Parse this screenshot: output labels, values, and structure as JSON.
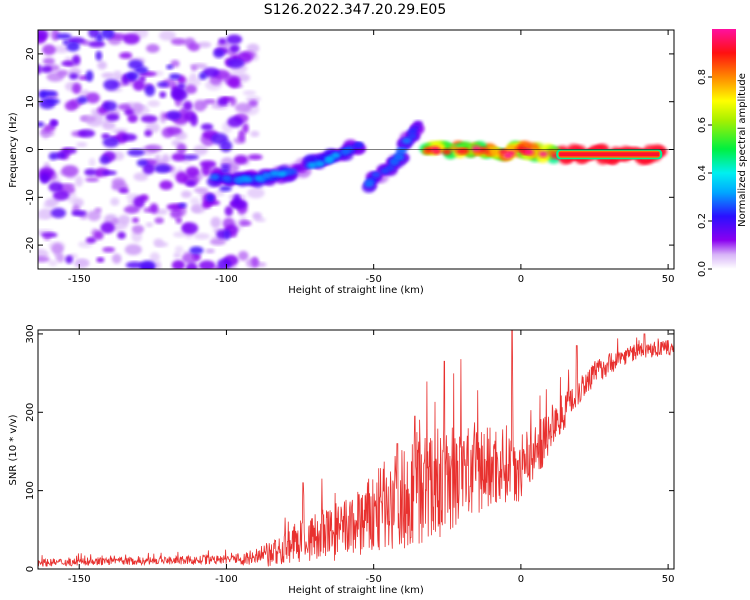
{
  "figure": {
    "title": "S126.2022.347.20.29.E05"
  },
  "colors": {
    "snr_line": "#e8312f",
    "axis": "#000000",
    "zero_line": "#000000"
  },
  "chart_data": [
    {
      "type": "heatmap",
      "xlabel": "Height of straight line (km)",
      "ylabel": "Frequency (Hz)",
      "xlim": [
        -164,
        52
      ],
      "ylim": [
        -25,
        25
      ],
      "xticks": [
        -150,
        -100,
        -50,
        0,
        50
      ],
      "yticks": [
        -20,
        -10,
        0,
        10,
        20
      ],
      "grid": false,
      "colorbar": {
        "label": "Normalized spectral amplitude",
        "range": [
          0,
          1
        ],
        "ticks": [
          "0.0",
          "0.2",
          "0.4",
          "0.6",
          "0.8"
        ],
        "tick_values": [
          0.0,
          0.2,
          0.4,
          0.6,
          0.8
        ],
        "colormap": "rainbow (white-violet-blue-cyan-green-yellow-red-magenta)"
      },
      "features": [
        {
          "name": "noise region",
          "x_range": [
            -164,
            -88
          ],
          "y_range": [
            -25,
            25
          ],
          "amplitude": [
            0.0,
            0.2
          ]
        },
        {
          "name": "dispersive track segment A",
          "points": [
            [
              -104,
              -6
            ],
            [
              -90,
              -6
            ],
            [
              -80,
              -5
            ],
            [
              -70,
              -3
            ],
            [
              -62,
              -1
            ],
            [
              -54,
              1
            ]
          ],
          "amplitude": [
            0.1,
            0.35
          ]
        },
        {
          "name": "dispersive track segment B",
          "points": [
            [
              -52,
              -7
            ],
            [
              -46,
              -4
            ],
            [
              -42,
              -2
            ],
            [
              -38,
              2
            ],
            [
              -34,
              6
            ]
          ],
          "amplitude": [
            0.1,
            0.3
          ]
        },
        {
          "name": "steady track",
          "points": [
            [
              -32,
              0
            ],
            [
              -20,
              0
            ],
            [
              -5,
              -1
            ],
            [
              0,
              0
            ],
            [
              10,
              -1
            ],
            [
              48,
              -1
            ]
          ],
          "amplitude": [
            0.3,
            1.0
          ]
        }
      ]
    },
    {
      "type": "line",
      "xlabel": "Height of straight line (km)",
      "ylabel": "SNR (10 * v/v)",
      "xlim": [
        -164,
        52
      ],
      "ylim": [
        0,
        305
      ],
      "xticks": [
        -150,
        -100,
        -50,
        0,
        50
      ],
      "yticks": [
        0,
        100,
        200,
        300
      ],
      "grid": false,
      "series": [
        {
          "x": [
            -164,
            -150,
            -140,
            -130,
            -120,
            -110,
            -100,
            -95,
            -90,
            -85,
            -80,
            -75,
            -70,
            -65,
            -60,
            -55,
            -50,
            -45,
            -40,
            -35,
            -30,
            -25,
            -20,
            -15,
            -10,
            -5,
            0,
            5,
            10,
            15,
            20,
            25,
            30,
            35,
            40,
            45,
            50,
            52
          ],
          "y": [
            8,
            9,
            10,
            10,
            11,
            11,
            12,
            13,
            14,
            18,
            28,
            35,
            40,
            44,
            50,
            58,
            68,
            85,
            90,
            100,
            105,
            115,
            120,
            125,
            130,
            135,
            130,
            150,
            175,
            205,
            230,
            250,
            262,
            272,
            278,
            280,
            282,
            283
          ],
          "spread": [
            5,
            5,
            5,
            5,
            5,
            6,
            6,
            8,
            12,
            18,
            22,
            28,
            32,
            36,
            40,
            45,
            55,
            60,
            65,
            70,
            72,
            70,
            68,
            62,
            55,
            50,
            45,
            35,
            30,
            25,
            20,
            16,
            14,
            12,
            10,
            10,
            10,
            10
          ],
          "peaks": [
            [
              -74,
              110
            ],
            [
              -55,
              95
            ],
            [
              -42,
              160
            ],
            [
              -36,
              195
            ],
            [
              -26,
              265
            ],
            [
              -3,
              305
            ],
            [
              19,
              285
            ],
            [
              42,
              300
            ]
          ]
        }
      ]
    }
  ]
}
